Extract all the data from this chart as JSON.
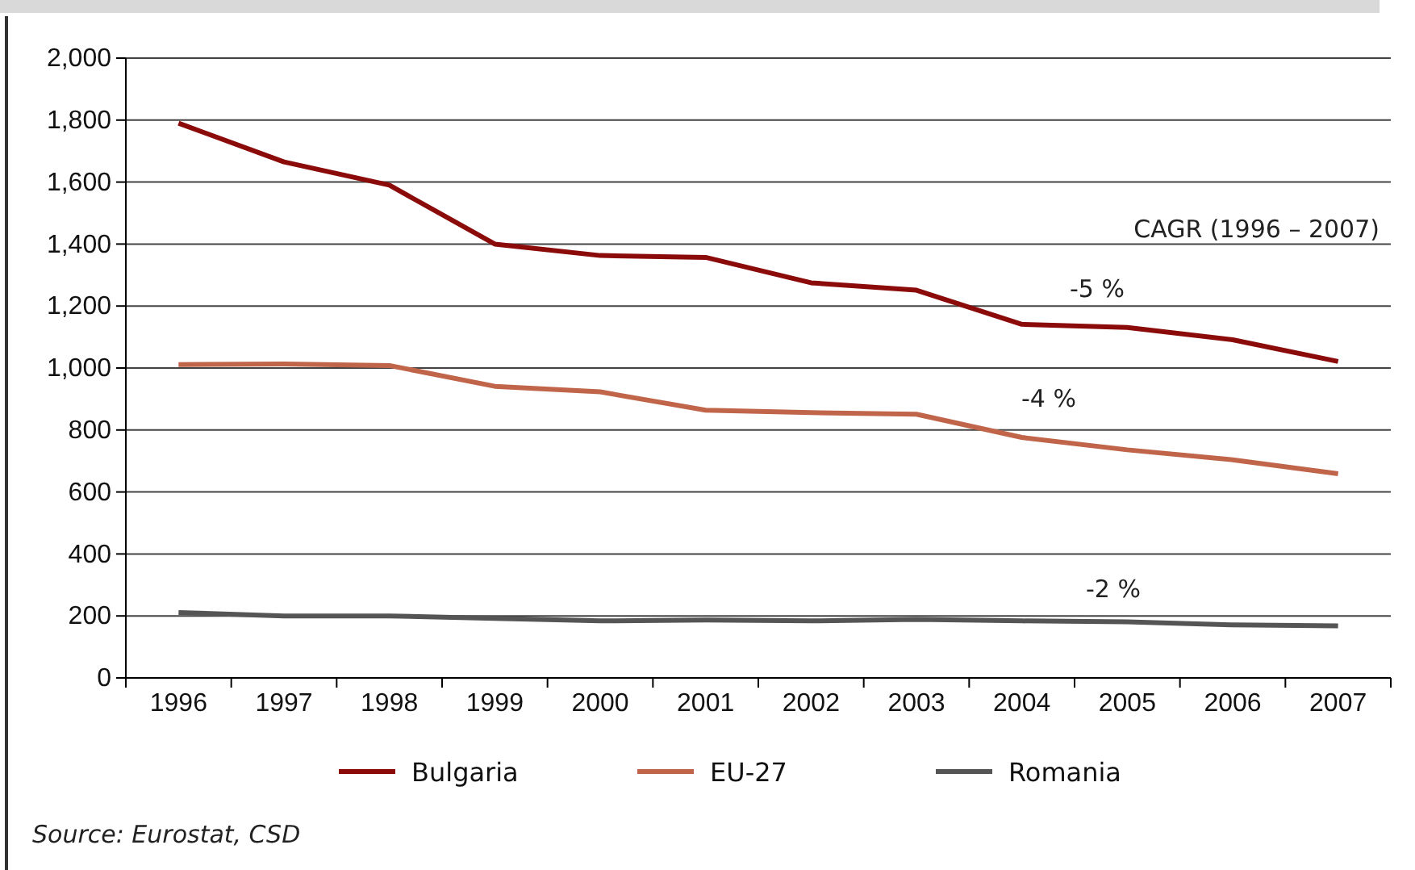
{
  "chart_data": {
    "type": "line",
    "categories": [
      "1996",
      "1997",
      "1998",
      "1999",
      "2000",
      "2001",
      "2002",
      "2003",
      "2004",
      "2005",
      "2006",
      "2007"
    ],
    "series": [
      {
        "name": "Bulgaria",
        "color": "#8b0a0a",
        "values": [
          1790,
          1665,
          1590,
          1400,
          1363,
          1357,
          1275,
          1251,
          1141,
          1131,
          1091,
          1021
        ]
      },
      {
        "name": "EU-27",
        "color": "#c0654a",
        "values": [
          1011,
          1013,
          1008,
          941,
          923,
          864,
          856,
          851,
          776,
          736,
          704,
          659
        ]
      },
      {
        "name": "Romania",
        "color": "#555555",
        "values": [
          211,
          200,
          200,
          192,
          184,
          187,
          184,
          189,
          184,
          181,
          171,
          168
        ]
      }
    ],
    "ylim": [
      0,
      2000
    ],
    "yticks": [
      {
        "value": 0,
        "label": "0"
      },
      {
        "value": 200,
        "label": "200"
      },
      {
        "value": 400,
        "label": "400"
      },
      {
        "value": 600,
        "label": "600"
      },
      {
        "value": 800,
        "label": "800"
      },
      {
        "value": 1000,
        "label": "1,000"
      },
      {
        "value": 1200,
        "label": "1,200"
      },
      {
        "value": 1400,
        "label": "1,400"
      },
      {
        "value": 1600,
        "label": "1,600"
      },
      {
        "value": 1800,
        "label": "1,800"
      },
      {
        "value": 2000,
        "label": "2,000"
      }
    ],
    "grid": "y",
    "legend": "bottom",
    "marker": "none",
    "line_style": "solid",
    "annotations": [
      "CAGR (1996 – 2007)",
      "-5 %",
      "-4 %",
      "-2 %",
      "Source: Eurostat, CSD"
    ]
  }
}
